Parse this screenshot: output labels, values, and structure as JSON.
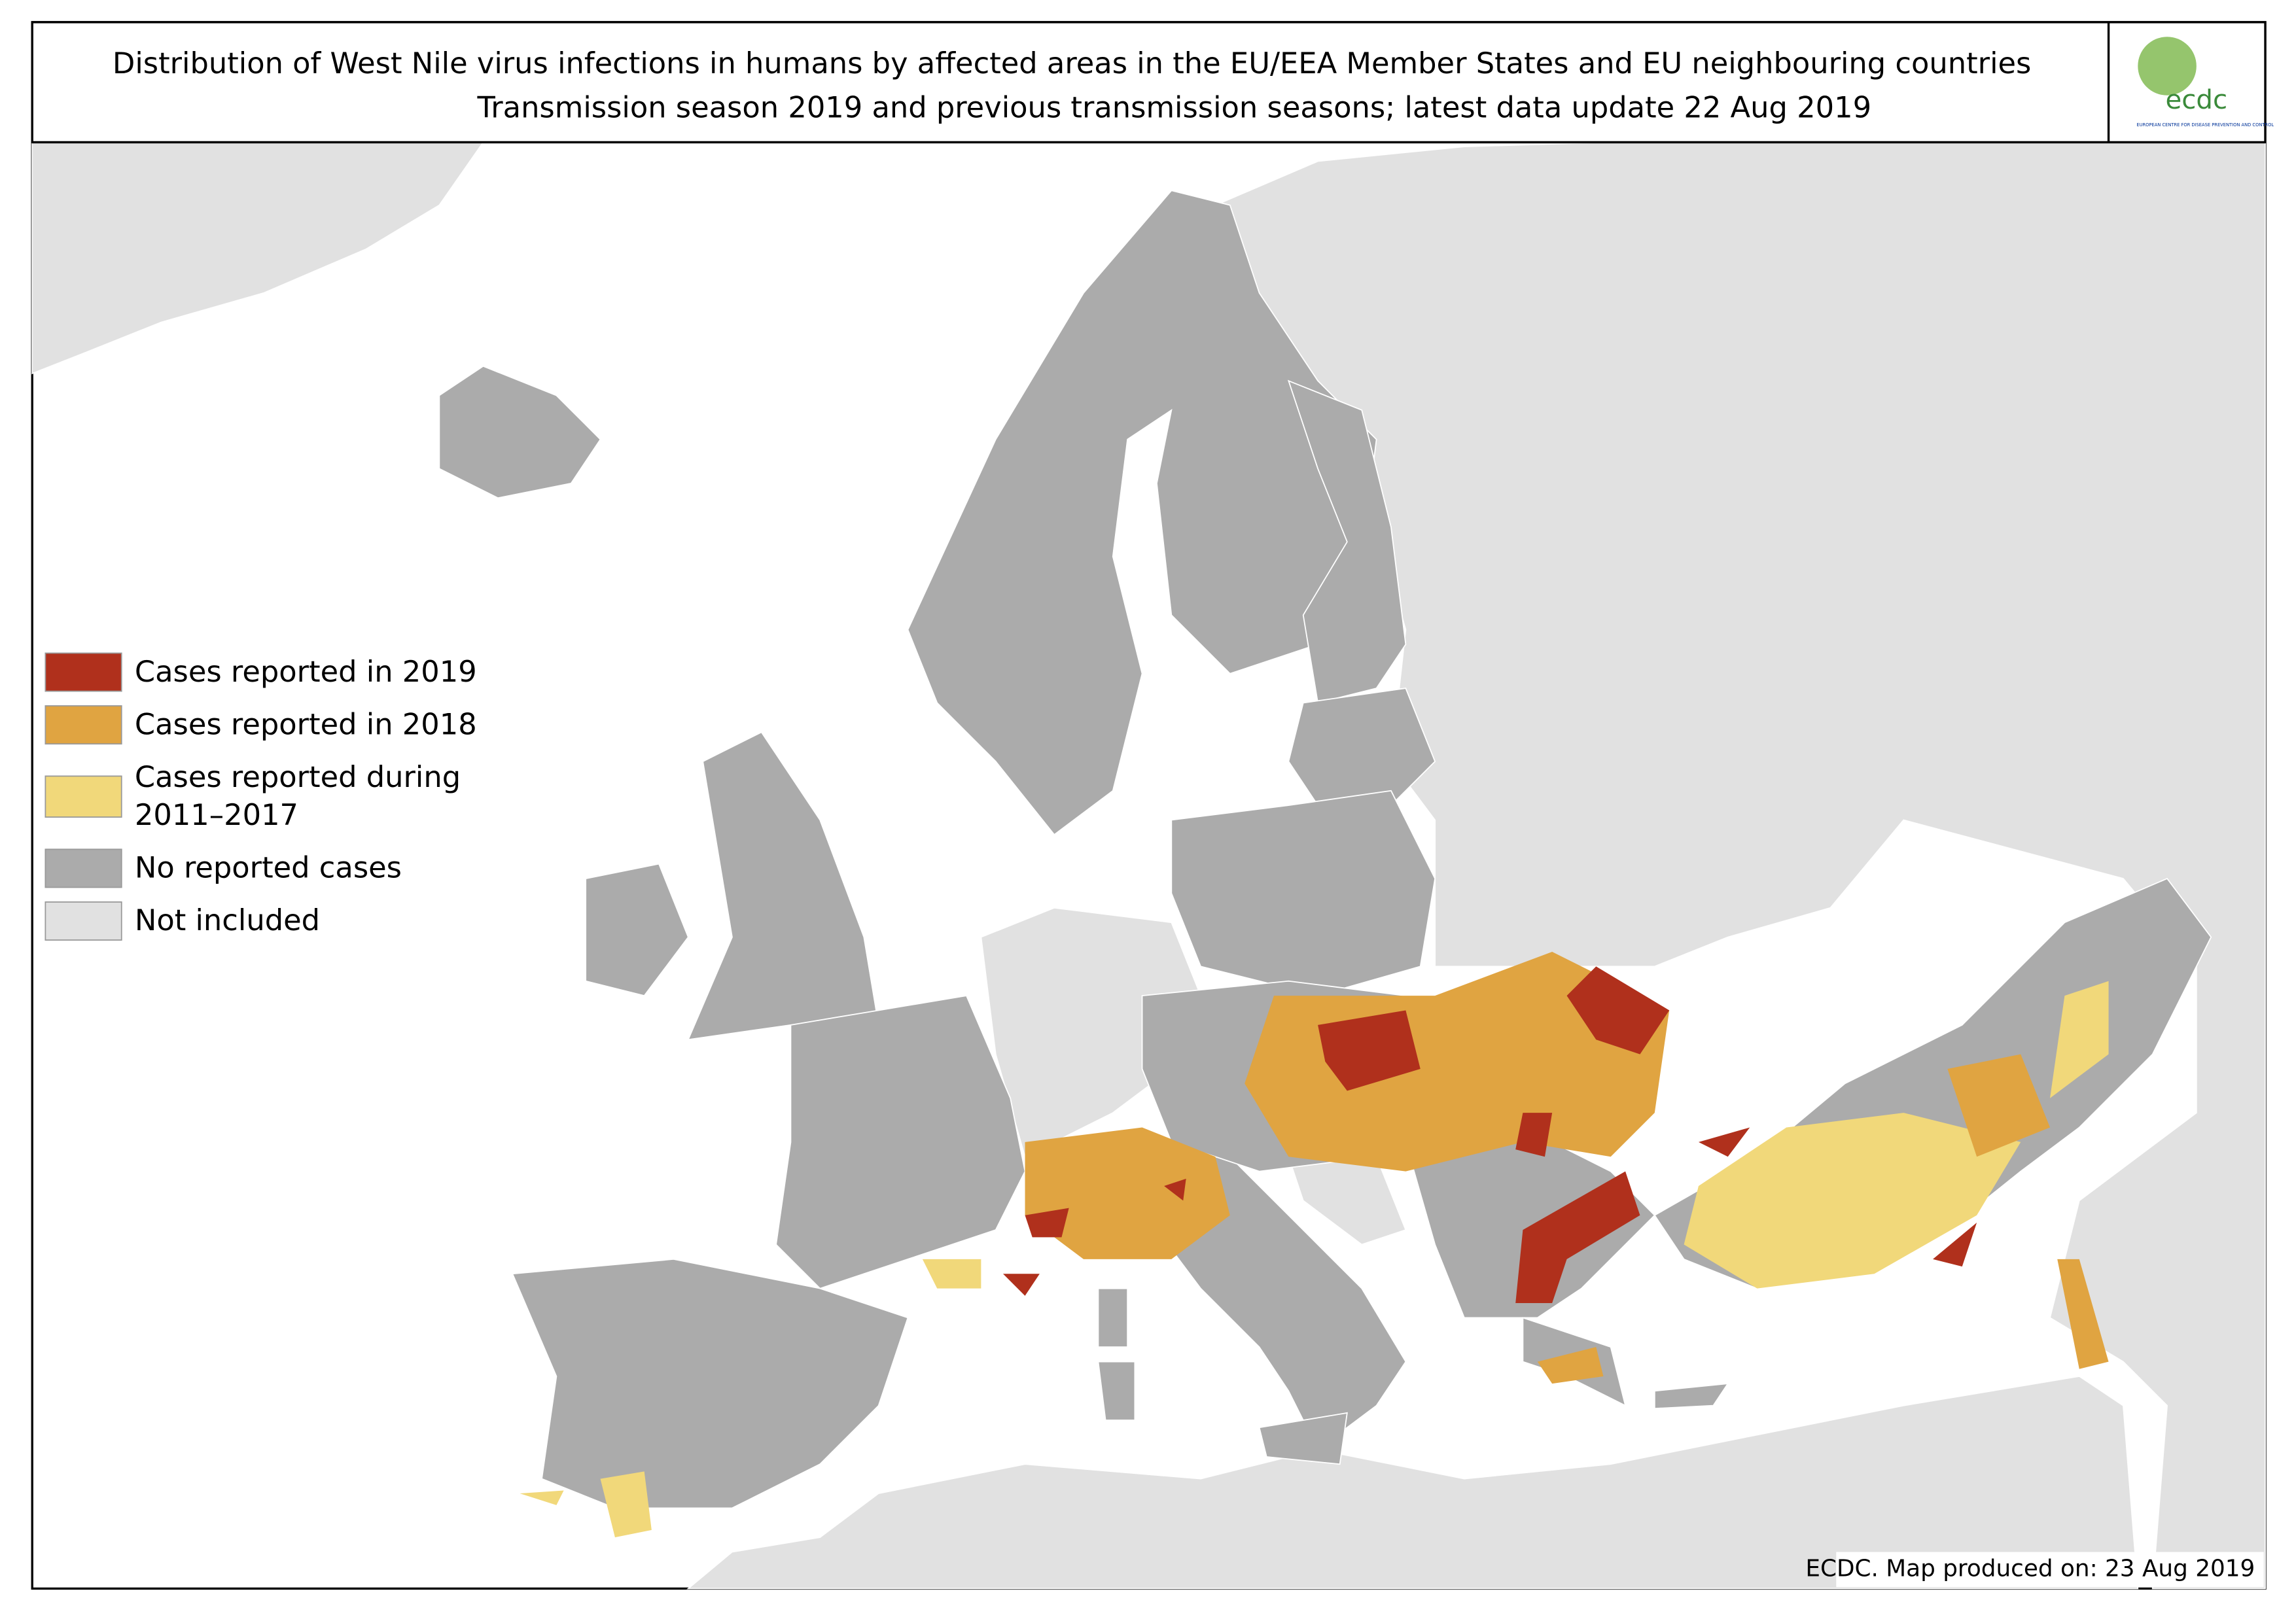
{
  "header": {
    "title_line1": "Distribution of West Nile virus infections in humans by affected areas in the EU/EEA Member States and EU neighbouring countries",
    "title_line2": "Transmission season 2019 and previous transmission seasons; latest data update 22 Aug 2019"
  },
  "logo": {
    "text": "ecdc",
    "subtext": "EUROPEAN CENTRE FOR DISEASE PREVENTION AND CONTROL"
  },
  "legend": [
    {
      "lines": [
        "Cases reported in 2019"
      ],
      "color": "#b0301c"
    },
    {
      "lines": [
        "Cases reported in 2018"
      ],
      "color": "#e0a441"
    },
    {
      "lines": [
        "Cases reported during",
        "2011–2017"
      ],
      "color": "#f1d87a"
    },
    {
      "lines": [
        "No reported cases"
      ],
      "color": "#ababab"
    },
    {
      "lines": [
        "Not included"
      ],
      "color": "#e1e1e1"
    }
  ],
  "footer": "ECDC. Map produced on: 23 Aug 2019"
}
